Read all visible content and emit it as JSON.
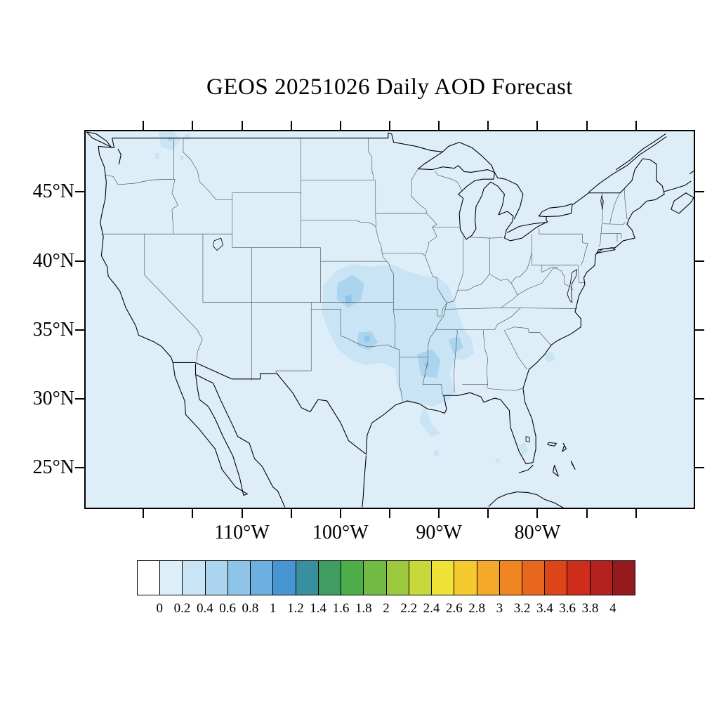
{
  "title": "GEOS 20251026 Daily AOD Forecast",
  "map": {
    "x_axis": {
      "labels": [
        "110°W",
        "100°W",
        "90°W",
        "80°W"
      ],
      "label_lons": [
        -110,
        -100,
        -90,
        -80
      ],
      "minor_tick_lons": [
        -120,
        -115,
        -110,
        -105,
        -100,
        -95,
        -90,
        -85,
        -80,
        -75,
        -70
      ]
    },
    "y_axis": {
      "labels": [
        "45°N",
        "40°N",
        "35°N",
        "30°N",
        "25°N"
      ],
      "label_lats": [
        45,
        40,
        35,
        30,
        25
      ],
      "minor_tick_lats": [
        45,
        40,
        35,
        30,
        25
      ]
    }
  },
  "colorbar": {
    "tick_labels": [
      "0",
      "0.2",
      "0.4",
      "0.6",
      "0.8",
      "1",
      "1.2",
      "1.4",
      "1.6",
      "1.8",
      "2",
      "2.2",
      "2.4",
      "2.6",
      "2.8",
      "3",
      "3.2",
      "3.4",
      "3.6",
      "3.8",
      "4"
    ],
    "colors": [
      "#ffffff",
      "#ddeef8",
      "#c8e4f5",
      "#abd5ee",
      "#8dc4e7",
      "#6db0df",
      "#4795d3",
      "#38909e",
      "#3f9d62",
      "#4dae49",
      "#71ba44",
      "#9cc940",
      "#c6d83a",
      "#eee336",
      "#f4ca2f",
      "#f4a928",
      "#ef8622",
      "#e8661d",
      "#dd4418",
      "#cd2d1a",
      "#b5211f",
      "#941a1e"
    ]
  },
  "chart_data": {
    "type": "heatmap",
    "title": "GEOS 20251026 Daily AOD Forecast",
    "model": "GEOS",
    "forecast_date": "20251026",
    "variable": "Daily Aerosol Optical Depth (AOD)",
    "domain": {
      "lon_range": [
        -126,
        -64
      ],
      "lat_range": [
        22,
        49.5
      ]
    },
    "x_ticks_labeled": [
      -110,
      -100,
      -90,
      -80
    ],
    "y_ticks_labeled": [
      45,
      40,
      35,
      30,
      25
    ],
    "colorbar_ticks": [
      0,
      0.2,
      0.4,
      0.6,
      0.8,
      1,
      1.2,
      1.4,
      1.6,
      1.8,
      2,
      2.2,
      2.4,
      2.6,
      2.8,
      3,
      3.2,
      3.4,
      3.6,
      3.8,
      4
    ],
    "colorbar_orientation": "horizontal",
    "background_aod_range": [
      0,
      0.2
    ],
    "regions": [
      {
        "area": "Central/Southern Plains and lower Mississippi Valley (KS, OK, MO, AR, LA, MS, W TN, N AL)",
        "aod_range": [
          0.2,
          0.4
        ]
      },
      {
        "area": "Central Kansas core",
        "aod_range": [
          0.4,
          0.8
        ]
      },
      {
        "area": "South-central Oklahoma core",
        "aod_range": [
          0.4,
          0.8
        ]
      },
      {
        "area": "Louisiana / Mississippi river core",
        "aod_range": [
          0.4,
          0.6
        ]
      },
      {
        "area": "NE Mississippi / NW Alabama lobe",
        "aod_range": [
          0.4,
          0.6
        ]
      },
      {
        "area": "NE Washington / N Idaho border patch",
        "aod_range": [
          0.2,
          0.4
        ]
      },
      {
        "area": "Coastal South Carolina spot",
        "aod_range": [
          0.2,
          0.4
        ]
      },
      {
        "area": "South Florida spot",
        "aod_range": [
          0.2,
          0.4
        ]
      },
      {
        "area": "Scattered Gulf of Mexico specks",
        "aod_range": [
          0.2,
          0.4
        ]
      },
      {
        "area": "Remainder of domain (CONUS, ocean, Canada, Mexico)",
        "aod_range": [
          0,
          0.2
        ]
      }
    ]
  }
}
